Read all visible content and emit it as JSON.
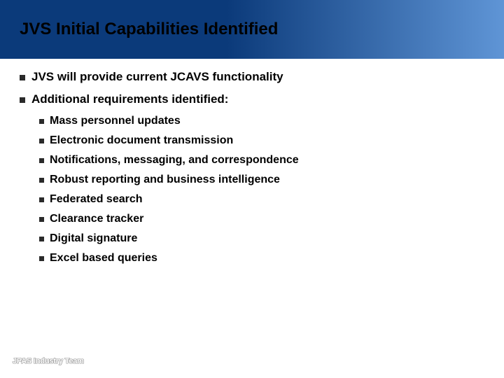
{
  "colors": {
    "title_text": "#000000",
    "title_bg_gradient_from": "#0b3a7a",
    "title_bg_gradient_to": "#5f95d6",
    "bullet_square": "#2a2a2a",
    "body_text": "#000000",
    "footer_fill": "#ffffff",
    "footer_outline": "#9a9a9a"
  },
  "title": "JVS Initial Capabilities Identified",
  "bullets": [
    {
      "text": "JVS will provide current JCAVS functionality"
    },
    {
      "text": "Additional requirements identified:",
      "children": [
        "Mass personnel updates",
        "Electronic document transmission",
        "Notifications, messaging, and correspondence",
        "Robust reporting and business intelligence",
        "Federated search",
        "Clearance tracker",
        "Digital signature",
        "Excel based queries"
      ]
    }
  ],
  "footer": "JPAS Industry Team"
}
